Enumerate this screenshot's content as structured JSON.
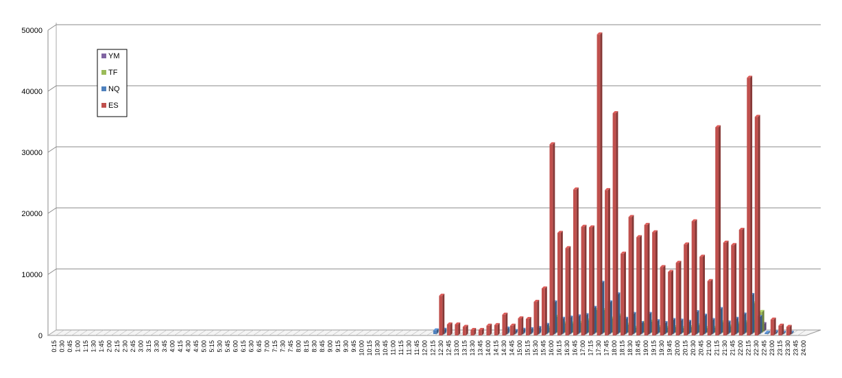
{
  "chart_data": {
    "type": "bar",
    "title": "",
    "xlabel": "",
    "ylabel": "",
    "ylim": [
      0,
      50000
    ],
    "yticks": [
      0,
      10000,
      20000,
      30000,
      40000,
      50000
    ],
    "grid": true,
    "legend_placement": "top-left",
    "legend_order": [
      "YM",
      "TF",
      "NQ",
      "ES"
    ],
    "categories": [
      "0:15",
      "0:30",
      "0:45",
      "1:00",
      "1:15",
      "1:30",
      "1:45",
      "2:00",
      "2:15",
      "2:30",
      "2:45",
      "3:00",
      "3:15",
      "3:30",
      "3:45",
      "4:00",
      "4:15",
      "4:30",
      "4:45",
      "5:00",
      "5:15",
      "5:30",
      "5:45",
      "6:00",
      "6:15",
      "6:30",
      "6:45",
      "7:00",
      "7:15",
      "7:30",
      "7:45",
      "8:00",
      "8:15",
      "8:30",
      "8:45",
      "9:00",
      "9:15",
      "9:30",
      "9:45",
      "10:00",
      "10:15",
      "10:30",
      "10:45",
      "11:00",
      "11:15",
      "11:30",
      "11:45",
      "12:00",
      "12:15",
      "12:30",
      "12:45",
      "13:00",
      "13:15",
      "13:30",
      "13:45",
      "14:00",
      "14:15",
      "14:30",
      "14:45",
      "15:00",
      "15:15",
      "15:30",
      "15:45",
      "16:00",
      "16:15",
      "16:30",
      "16:45",
      "17:00",
      "17:15",
      "17:30",
      "17:45",
      "18:00",
      "18:15",
      "18:30",
      "18:45",
      "19:00",
      "19:15",
      "19:30",
      "19:45",
      "20:00",
      "20:15",
      "20:30",
      "20:45",
      "21:00",
      "21:15",
      "21:30",
      "21:45",
      "22:00",
      "22:15",
      "22:30",
      "22:45",
      "23:00",
      "23:15",
      "23:30",
      "23:45",
      "24:00"
    ],
    "series": [
      {
        "name": "ES",
        "color": "#C0504D",
        "values": [
          0,
          0,
          0,
          0,
          0,
          0,
          0,
          0,
          0,
          0,
          0,
          0,
          0,
          0,
          0,
          0,
          0,
          0,
          0,
          0,
          0,
          0,
          0,
          0,
          0,
          0,
          0,
          0,
          0,
          0,
          0,
          0,
          0,
          0,
          0,
          0,
          0,
          0,
          0,
          0,
          0,
          0,
          0,
          0,
          0,
          0,
          0,
          0,
          0,
          6500,
          1800,
          1800,
          1400,
          900,
          900,
          1600,
          1700,
          3400,
          1600,
          2800,
          2700,
          5500,
          7700,
          31300,
          16800,
          14300,
          23900,
          17800,
          17700,
          49300,
          23800,
          36400,
          13400,
          19400,
          16100,
          18100,
          16900,
          11200,
          10400,
          11900,
          14900,
          18700,
          12900,
          8900,
          34100,
          15200,
          14800,
          17300,
          42200,
          35800,
          0,
          2600,
          1600,
          1400,
          0,
          0
        ]
      },
      {
        "name": "NQ",
        "color": "#4F81BD",
        "values": [
          0,
          0,
          0,
          0,
          0,
          0,
          0,
          0,
          0,
          0,
          0,
          0,
          0,
          0,
          0,
          0,
          0,
          0,
          0,
          0,
          0,
          0,
          0,
          0,
          0,
          0,
          0,
          0,
          0,
          0,
          0,
          0,
          0,
          0,
          0,
          0,
          0,
          0,
          0,
          0,
          0,
          0,
          0,
          0,
          0,
          0,
          0,
          0,
          600,
          700,
          0,
          0,
          0,
          0,
          0,
          0,
          0,
          900,
          500,
          700,
          800,
          1000,
          1500,
          5200,
          2500,
          2700,
          2900,
          3100,
          4300,
          8400,
          5200,
          6500,
          2500,
          3300,
          1800,
          3300,
          2100,
          1800,
          2300,
          2200,
          2000,
          3600,
          3000,
          2300,
          4100,
          1900,
          2500,
          3200,
          6400,
          2800,
          200,
          300,
          200,
          200,
          0,
          0
        ]
      },
      {
        "name": "TF",
        "color": "#9BBB59",
        "values": [
          0,
          0,
          0,
          0,
          0,
          0,
          0,
          0,
          0,
          0,
          0,
          0,
          0,
          0,
          0,
          0,
          0,
          0,
          0,
          0,
          0,
          0,
          0,
          0,
          0,
          0,
          0,
          0,
          0,
          0,
          0,
          0,
          0,
          0,
          0,
          0,
          0,
          0,
          0,
          0,
          0,
          0,
          0,
          0,
          0,
          0,
          0,
          0,
          0,
          0,
          0,
          0,
          0,
          0,
          0,
          0,
          0,
          0,
          0,
          0,
          0,
          0,
          800,
          2600,
          1500,
          1500,
          1600,
          2000,
          3700,
          3700,
          2300,
          2800,
          1300,
          800,
          1600,
          1800,
          900,
          800,
          900,
          700,
          900,
          1200,
          700,
          800,
          1700,
          1000,
          1500,
          1700,
          4800,
          3400,
          0,
          0,
          0,
          0,
          0,
          0
        ]
      },
      {
        "name": "YM",
        "color": "#8064A2",
        "values": [
          0,
          0,
          0,
          0,
          0,
          0,
          0,
          0,
          0,
          0,
          0,
          0,
          0,
          0,
          0,
          0,
          0,
          0,
          0,
          0,
          0,
          0,
          0,
          0,
          0,
          0,
          0,
          0,
          0,
          0,
          0,
          0,
          0,
          0,
          0,
          0,
          0,
          0,
          0,
          0,
          0,
          0,
          0,
          0,
          0,
          0,
          0,
          0,
          0,
          0,
          0,
          0,
          0,
          0,
          0,
          0,
          0,
          0,
          0,
          0,
          0,
          0,
          400,
          1200,
          600,
          700,
          800,
          1000,
          1500,
          1900,
          900,
          1200,
          800,
          600,
          700,
          900,
          600,
          500,
          600,
          600,
          600,
          800,
          600,
          500,
          900,
          600,
          800,
          900,
          1700,
          1200,
          0,
          0,
          0,
          0,
          0,
          0
        ]
      }
    ]
  }
}
